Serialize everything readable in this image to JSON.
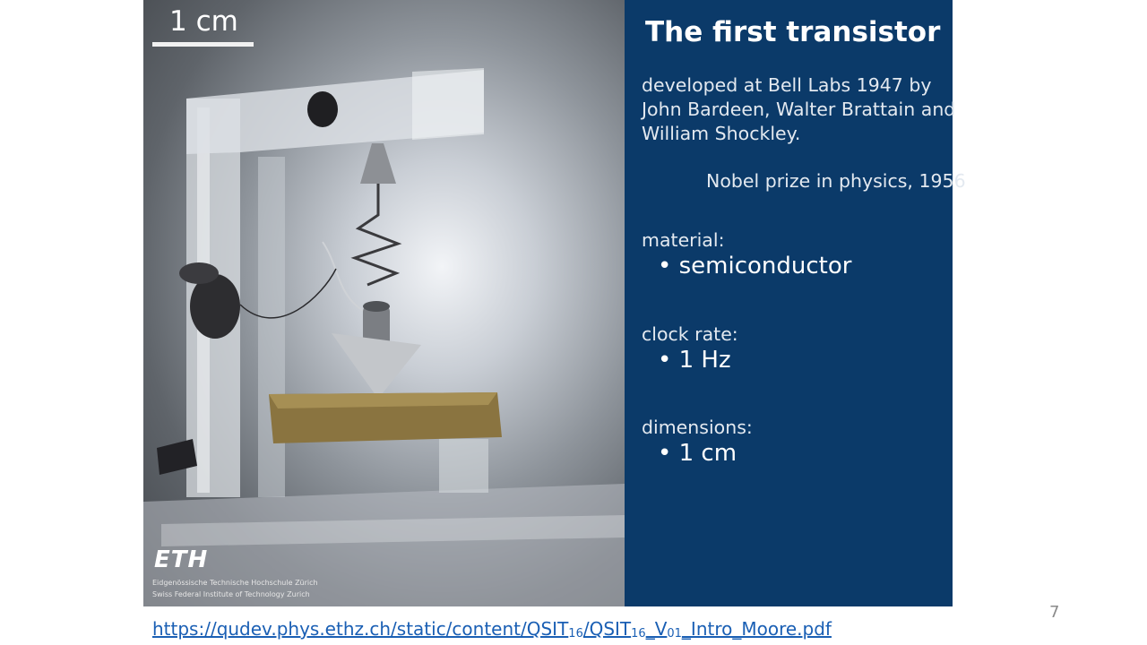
{
  "photo": {
    "scale_label": "1 cm",
    "logo_text": "ETH",
    "institution_line_1": "Eidgenössische Technische Hochschule Zürich",
    "institution_line_2": "Swiss Federal Institute of Technology Zurich"
  },
  "panel": {
    "title": "The first transistor",
    "intro_lines": [
      "developed at Bell Labs 1947 by",
      "John Bardeen, Walter Brattain and",
      "William Shockley."
    ],
    "nobel": "Nobel prize in physics, 1956",
    "material_label": "material:",
    "material_value": "• semiconductor",
    "clock_label": "clock rate:",
    "clock_value": "• 1 Hz",
    "dimensions_label": "dimensions:",
    "dimensions_value": "• 1 cm"
  },
  "page_number": "7",
  "source_link": {
    "part1": "https://qudev.phys.ethz.ch/static/content/QSIT",
    "sub1": "16",
    "part2": "/QSIT",
    "sub2": "16",
    "part3": "_V",
    "sub3": "01",
    "part4": "_Intro_Moore.pdf"
  },
  "colors": {
    "panel_background": "#0b3a69",
    "link": "#1a5fb4"
  }
}
